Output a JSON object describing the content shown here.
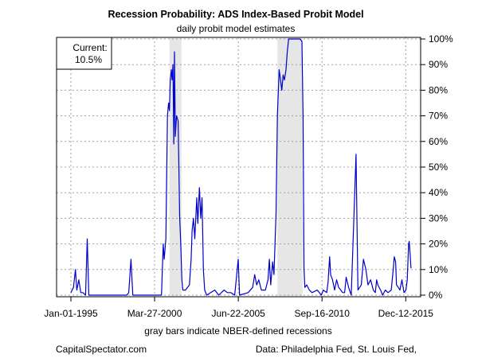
{
  "chart_data": {
    "type": "line",
    "title": "Recession Probability: ADS Index-Based Probit Model",
    "subtitle": "daily probit model estimates",
    "xlabel": "gray bars indicate NBER-defined recessions",
    "ylabel": "",
    "ylim": [
      0,
      1
    ],
    "xlim": [
      "1995-01-01",
      "2016-04-30"
    ],
    "x_ticks": [
      "Jan-01-1995",
      "Mar-27-2000",
      "Jun-22-2005",
      "Sep-16-2010",
      "Dec-12-2015"
    ],
    "y_ticks": [
      "0%",
      "10%",
      "20%",
      "30%",
      "40%",
      "50%",
      "60%",
      "70%",
      "80%",
      "90%",
      "100%"
    ],
    "grid": true,
    "line_color": "#0000cc",
    "recession_shading": [
      {
        "start": "2001-03-01",
        "end": "2001-11-30"
      },
      {
        "start": "2007-12-01",
        "end": "2009-06-30"
      }
    ],
    "annotation": {
      "label": "Current:",
      "value": "10.5%"
    },
    "series": [
      {
        "values": [
          [
            "1995-01-01",
            0.01
          ],
          [
            "1995-03-01",
            0.03
          ],
          [
            "1995-04-15",
            0.1
          ],
          [
            "1995-05-15",
            0.02
          ],
          [
            "1995-07-01",
            0.06
          ],
          [
            "1995-08-15",
            0.01
          ],
          [
            "1995-10-01",
            0.01
          ],
          [
            "1995-12-01",
            0.0
          ],
          [
            "1996-01-10",
            0.22
          ],
          [
            "1996-02-15",
            0.0
          ],
          [
            "1997-01-01",
            0.0
          ],
          [
            "1998-07-01",
            0.0
          ],
          [
            "1998-08-15",
            0.01
          ],
          [
            "1998-10-05",
            0.14
          ],
          [
            "1998-11-15",
            0.0
          ],
          [
            "1999-06-01",
            0.0
          ],
          [
            "2000-05-01",
            0.0
          ],
          [
            "2000-09-01",
            0.0
          ],
          [
            "2000-10-10",
            0.2
          ],
          [
            "2000-11-01",
            0.14
          ],
          [
            "2000-12-10",
            0.22
          ],
          [
            "2001-01-15",
            0.7
          ],
          [
            "2001-02-10",
            0.75
          ],
          [
            "2001-03-01",
            0.72
          ],
          [
            "2001-03-20",
            0.84
          ],
          [
            "2001-04-15",
            0.88
          ],
          [
            "2001-05-01",
            0.84
          ],
          [
            "2001-05-20",
            0.9
          ],
          [
            "2001-06-10",
            0.59
          ],
          [
            "2001-06-25",
            0.95
          ],
          [
            "2001-07-15",
            0.62
          ],
          [
            "2001-08-10",
            0.7
          ],
          [
            "2001-09-15",
            0.68
          ],
          [
            "2001-10-20",
            0.31
          ],
          [
            "2001-11-15",
            0.2
          ],
          [
            "2001-12-10",
            0.06
          ],
          [
            "2002-01-01",
            0.02
          ],
          [
            "2002-03-01",
            0.02
          ],
          [
            "2002-06-01",
            0.04
          ],
          [
            "2002-07-10",
            0.14
          ],
          [
            "2002-08-01",
            0.25
          ],
          [
            "2002-09-01",
            0.3
          ],
          [
            "2002-10-01",
            0.22
          ],
          [
            "2002-11-15",
            0.38
          ],
          [
            "2002-12-10",
            0.28
          ],
          [
            "2003-01-15",
            0.42
          ],
          [
            "2003-02-15",
            0.3
          ],
          [
            "2003-03-15",
            0.38
          ],
          [
            "2003-04-15",
            0.1
          ],
          [
            "2003-05-15",
            0.02
          ],
          [
            "2003-07-01",
            0.0
          ],
          [
            "2003-10-01",
            0.01
          ],
          [
            "2004-01-01",
            0.02
          ],
          [
            "2004-04-01",
            0.0
          ],
          [
            "2004-08-01",
            0.02
          ],
          [
            "2004-10-15",
            0.01
          ],
          [
            "2005-01-01",
            0.01
          ],
          [
            "2005-04-01",
            0.0
          ],
          [
            "2005-06-20",
            0.14
          ],
          [
            "2005-07-20",
            0.0
          ],
          [
            "2006-02-01",
            0.01
          ],
          [
            "2006-05-15",
            0.03
          ],
          [
            "2006-07-01",
            0.08
          ],
          [
            "2006-08-15",
            0.04
          ],
          [
            "2006-10-01",
            0.06
          ],
          [
            "2006-12-01",
            0.02
          ],
          [
            "2007-03-01",
            0.02
          ],
          [
            "2007-05-01",
            0.06
          ],
          [
            "2007-06-01",
            0.14
          ],
          [
            "2007-07-01",
            0.04
          ],
          [
            "2007-08-15",
            0.13
          ],
          [
            "2007-09-15",
            0.08
          ],
          [
            "2007-11-01",
            0.32
          ],
          [
            "2007-12-01",
            0.7
          ],
          [
            "2008-01-10",
            0.88
          ],
          [
            "2008-02-10",
            0.84
          ],
          [
            "2008-03-10",
            0.8
          ],
          [
            "2008-04-10",
            0.86
          ],
          [
            "2008-05-10",
            0.84
          ],
          [
            "2008-06-15",
            0.88
          ],
          [
            "2008-07-15",
            0.95
          ],
          [
            "2008-08-15",
            1.0
          ],
          [
            "2008-09-15",
            1.0
          ],
          [
            "2009-02-01",
            1.0
          ],
          [
            "2009-05-01",
            1.0
          ],
          [
            "2009-06-15",
            0.99
          ],
          [
            "2009-07-10",
            0.7
          ],
          [
            "2009-08-01",
            0.1
          ],
          [
            "2009-08-20",
            0.03
          ],
          [
            "2009-10-01",
            0.04
          ],
          [
            "2009-12-01",
            0.02
          ],
          [
            "2010-02-01",
            0.01
          ],
          [
            "2010-06-01",
            0.02
          ],
          [
            "2010-09-01",
            0.0
          ],
          [
            "2010-10-15",
            0.02
          ],
          [
            "2011-01-01",
            0.01
          ],
          [
            "2011-02-01",
            0.05
          ],
          [
            "2011-03-10",
            0.15
          ],
          [
            "2011-04-01",
            0.08
          ],
          [
            "2011-05-15",
            0.06
          ],
          [
            "2011-07-01",
            0.02
          ],
          [
            "2011-08-15",
            0.06
          ],
          [
            "2011-10-01",
            0.03
          ],
          [
            "2012-01-01",
            0.01
          ],
          [
            "2012-02-15",
            0.01
          ],
          [
            "2012-03-20",
            0.07
          ],
          [
            "2012-05-15",
            0.03
          ],
          [
            "2012-07-15",
            0.0
          ],
          [
            "2012-11-01",
            0.55
          ],
          [
            "2012-12-15",
            0.02
          ],
          [
            "2013-03-01",
            0.04
          ],
          [
            "2013-04-20",
            0.14
          ],
          [
            "2013-06-15",
            0.1
          ],
          [
            "2013-08-01",
            0.04
          ],
          [
            "2013-10-01",
            0.06
          ],
          [
            "2013-12-01",
            0.02
          ],
          [
            "2014-01-15",
            0.01
          ],
          [
            "2014-02-15",
            0.06
          ],
          [
            "2014-03-15",
            0.04
          ],
          [
            "2014-05-15",
            0.02
          ],
          [
            "2014-07-01",
            0.0
          ],
          [
            "2014-09-01",
            0.02
          ],
          [
            "2014-11-01",
            0.01
          ],
          [
            "2015-01-15",
            0.02
          ],
          [
            "2015-03-01",
            0.1
          ],
          [
            "2015-03-25",
            0.15
          ],
          [
            "2015-04-25",
            0.13
          ],
          [
            "2015-05-15",
            0.04
          ],
          [
            "2015-06-25",
            0.03
          ],
          [
            "2015-08-01",
            0.02
          ],
          [
            "2015-09-15",
            0.06
          ],
          [
            "2015-11-01",
            0.01
          ],
          [
            "2015-12-15",
            0.02
          ],
          [
            "2016-01-15",
            0.06
          ],
          [
            "2016-02-15",
            0.2
          ],
          [
            "2016-03-01",
            0.21
          ],
          [
            "2016-03-25",
            0.15
          ],
          [
            "2016-04-10",
            0.105
          ]
        ]
      }
    ]
  },
  "footer": {
    "left": "CapitalSpectator.com",
    "right": "Data: Philadelphia Fed, St. Louis Fed,"
  }
}
